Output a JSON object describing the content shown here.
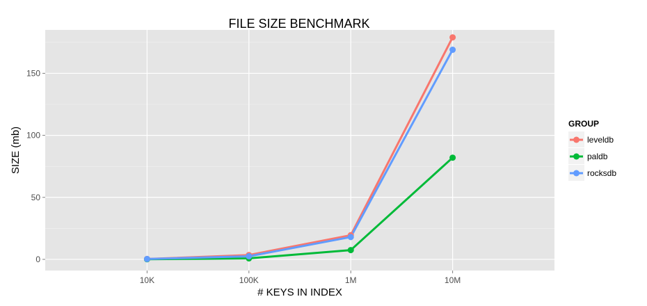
{
  "chart_data": {
    "type": "line",
    "title": "FILE SIZE BENCHMARK",
    "xlabel": "# KEYS IN INDEX",
    "ylabel": "SIZE (mb)",
    "categories": [
      "10K",
      "100K",
      "1M",
      "10M"
    ],
    "y_ticks": [
      0,
      50,
      100,
      150
    ],
    "ylim": [
      -9,
      185
    ],
    "grid": true,
    "legend": {
      "title": "GROUP",
      "placement": "right"
    },
    "series": [
      {
        "name": "leveldb",
        "color": "#F8766D",
        "values": [
          0.3,
          3.5,
          19.5,
          179
        ]
      },
      {
        "name": "paldb",
        "color": "#00BA38",
        "values": [
          0.1,
          0.8,
          7.5,
          82
        ]
      },
      {
        "name": "rocksdb",
        "color": "#619CFF",
        "values": [
          0.3,
          2.5,
          18,
          169
        ]
      }
    ]
  }
}
